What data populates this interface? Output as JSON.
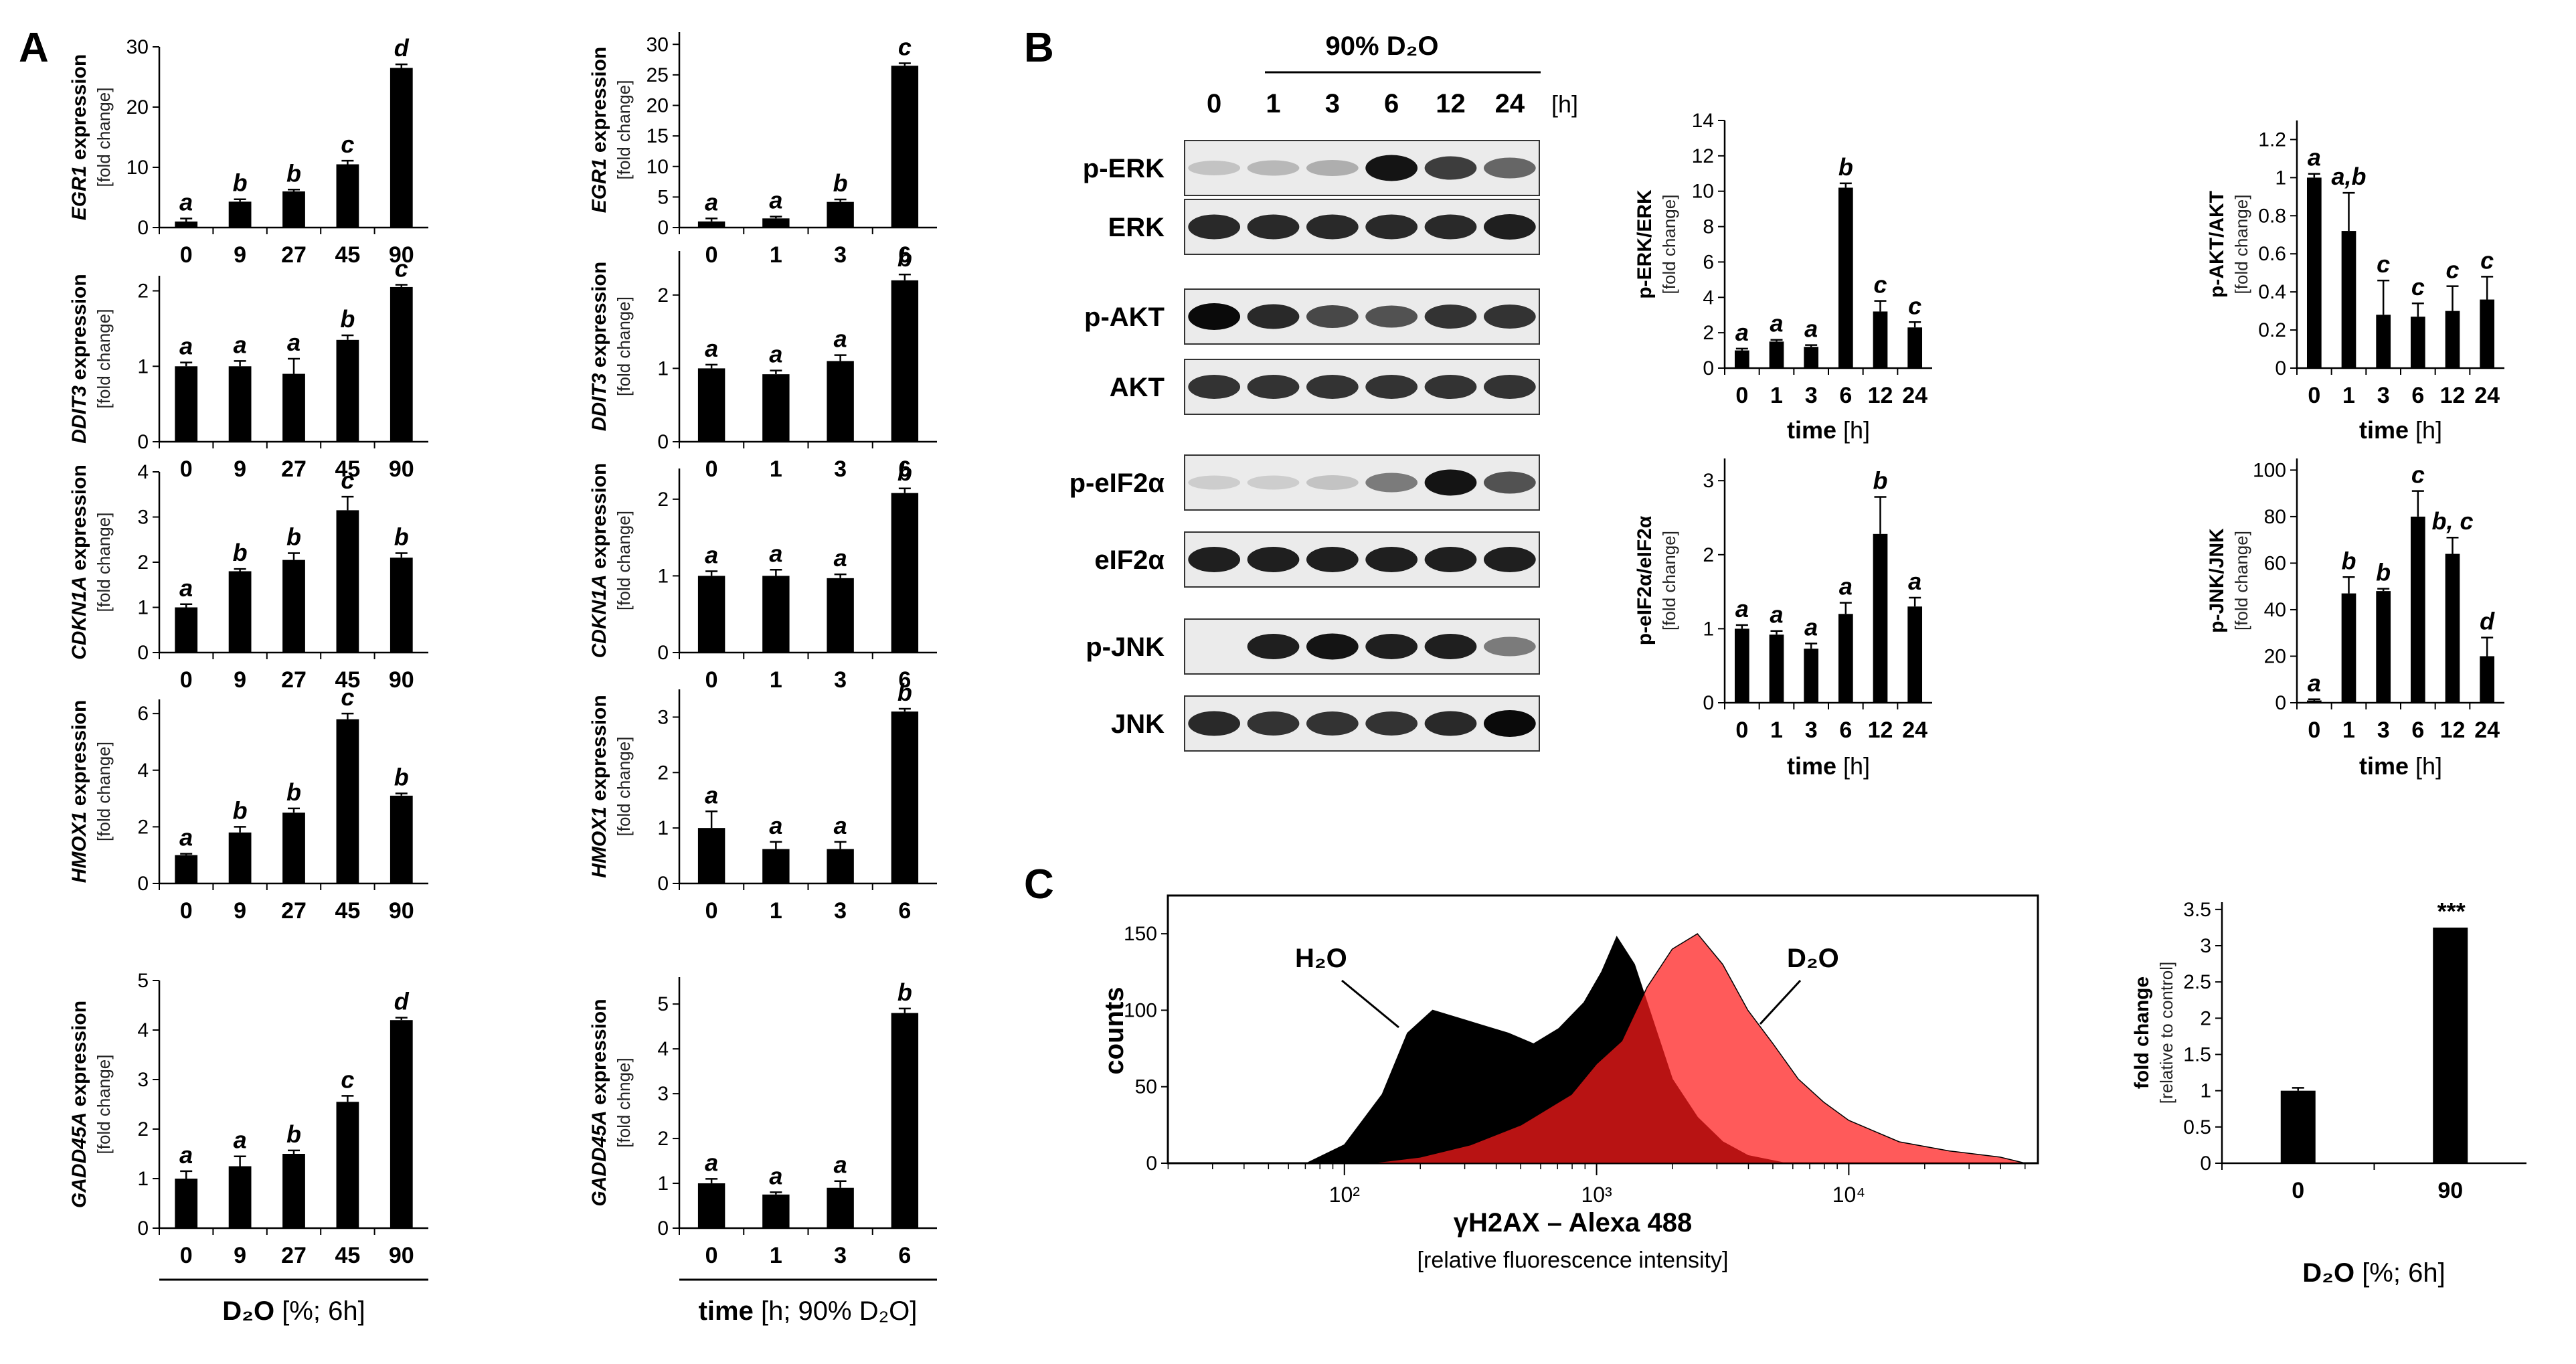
{
  "panels": {
    "a": "A",
    "b": "B",
    "c": "C"
  },
  "chart_data": [
    {
      "type": "bar",
      "name": "EGR1 dose",
      "gene": "EGR1",
      "ylabel_suffix": " expression",
      "ylabel2": "[fold change]",
      "categories": [
        "0",
        "9",
        "27",
        "45",
        "90"
      ],
      "values": [
        1,
        4.3,
        6,
        10.5,
        26.5
      ],
      "errors": [
        0.5,
        0.4,
        0.3,
        0.6,
        0.6
      ],
      "letters": [
        "a",
        "b",
        "b",
        "c",
        "d"
      ],
      "ylim": [
        0,
        30
      ],
      "yticks": [
        "0",
        "10",
        "20",
        "30"
      ]
    },
    {
      "type": "bar",
      "name": "DDIT3 dose",
      "gene": "DDIT3",
      "ylabel_suffix": " expression",
      "ylabel2": "[fold change]",
      "categories": [
        "0",
        "9",
        "27",
        "45",
        "90"
      ],
      "values": [
        1,
        1,
        0.9,
        1.35,
        2.05
      ],
      "errors": [
        0.05,
        0.07,
        0.2,
        0.06,
        0.03
      ],
      "letters": [
        "a",
        "a",
        "a",
        "b",
        "c"
      ],
      "ylim": [
        0,
        2.2
      ],
      "yticks": [
        "0",
        "1",
        "2"
      ]
    },
    {
      "type": "bar",
      "name": "CDKN1A dose",
      "gene": "CDKN1A",
      "ylabel_suffix": " expression",
      "ylabel2": "[fold change]",
      "categories": [
        "0",
        "9",
        "27",
        "45",
        "90"
      ],
      "values": [
        1,
        1.8,
        2.05,
        3.15,
        2.1
      ],
      "errors": [
        0.07,
        0.05,
        0.15,
        0.3,
        0.1
      ],
      "letters": [
        "a",
        "b",
        "b",
        "c",
        "b"
      ],
      "ylim": [
        0,
        4
      ],
      "yticks": [
        "0",
        "1",
        "2",
        "3",
        "4"
      ]
    },
    {
      "type": "bar",
      "name": "HMOX1 dose",
      "gene": "HMOX1",
      "ylabel_suffix": " expression",
      "ylabel2": "[fold change]",
      "categories": [
        "0",
        "9",
        "27",
        "45",
        "90"
      ],
      "values": [
        1,
        1.8,
        2.5,
        5.8,
        3.1
      ],
      "errors": [
        0.05,
        0.2,
        0.15,
        0.2,
        0.08
      ],
      "letters": [
        "a",
        "b",
        "b",
        "c",
        "b"
      ],
      "ylim": [
        0,
        6.5
      ],
      "yticks": [
        "0",
        "2",
        "4",
        "6"
      ]
    },
    {
      "type": "bar",
      "name": "GADD45A dose",
      "gene": "GADD45A",
      "ylabel_suffix": " expression",
      "ylabel2": "[fold change]",
      "categories": [
        "0",
        "9",
        "27",
        "45",
        "90"
      ],
      "values": [
        1,
        1.25,
        1.5,
        2.55,
        4.2
      ],
      "errors": [
        0.15,
        0.2,
        0.07,
        0.12,
        0.05
      ],
      "letters": [
        "a",
        "a",
        "b",
        "c",
        "d"
      ],
      "ylim": [
        0,
        5
      ],
      "yticks": [
        "0",
        "1",
        "2",
        "3",
        "4",
        "5"
      ]
    },
    {
      "type": "bar",
      "name": "EGR1 time",
      "gene": "EGR1",
      "ylabel_suffix": " expression",
      "ylabel2": "[fold change]",
      "categories": [
        "0",
        "1",
        "3",
        "6"
      ],
      "values": [
        1,
        1.5,
        4.2,
        26.5
      ],
      "errors": [
        0.5,
        0.3,
        0.4,
        0.4
      ],
      "letters": [
        "a",
        "a",
        "b",
        "c"
      ],
      "ylim": [
        0,
        32
      ],
      "yticks": [
        "0",
        "5",
        "10",
        "15",
        "20",
        "25",
        "30"
      ]
    },
    {
      "type": "bar",
      "name": "DDIT3 time",
      "gene": "DDIT3",
      "ylabel_suffix": " expression",
      "ylabel2": "[fold change]",
      "categories": [
        "0",
        "1",
        "3",
        "6"
      ],
      "values": [
        1,
        0.92,
        1.1,
        2.2
      ],
      "errors": [
        0.05,
        0.05,
        0.08,
        0.08
      ],
      "letters": [
        "a",
        "a",
        "a",
        "b"
      ],
      "ylim": [
        0,
        2.6
      ],
      "yticks": [
        "0",
        "1",
        "2"
      ]
    },
    {
      "type": "bar",
      "name": "CDKN1A time",
      "gene": "CDKN1A",
      "ylabel_suffix": " expression",
      "ylabel2": "[fold change]",
      "categories": [
        "0",
        "1",
        "3",
        "6"
      ],
      "values": [
        1,
        1,
        0.97,
        2.08
      ],
      "errors": [
        0.06,
        0.08,
        0.05,
        0.06
      ],
      "letters": [
        "a",
        "a",
        "a",
        "b"
      ],
      "ylim": [
        0,
        2.4
      ],
      "yticks": [
        "0",
        "1",
        "2"
      ]
    },
    {
      "type": "bar",
      "name": "HMOX1 time",
      "gene": "HMOX1",
      "ylabel_suffix": " expression",
      "ylabel2": "[fold change]",
      "categories": [
        "0",
        "1",
        "3",
        "6"
      ],
      "values": [
        1,
        0.62,
        0.62,
        3.1
      ],
      "errors": [
        0.3,
        0.13,
        0.13,
        0.05
      ],
      "letters": [
        "a",
        "a",
        "a",
        "b"
      ],
      "ylim": [
        0,
        3.5
      ],
      "yticks": [
        "0",
        "1",
        "2",
        "3"
      ]
    },
    {
      "type": "bar",
      "name": "GADD45A time",
      "gene": "GADD45A",
      "ylabel_suffix": " expression",
      "ylabel2": "[fold chnge]",
      "categories": [
        "0",
        "1",
        "3",
        "6"
      ],
      "values": [
        1,
        0.75,
        0.9,
        4.8
      ],
      "errors": [
        0.1,
        0.05,
        0.15,
        0.1
      ],
      "letters": [
        "a",
        "a",
        "a",
        "b"
      ],
      "ylim": [
        0,
        5.6
      ],
      "yticks": [
        "0",
        "1",
        "2",
        "3",
        "4",
        "5"
      ]
    },
    {
      "type": "bar",
      "name": "p-ERK/ERK",
      "ylabel": "p-ERK/ERK",
      "ylabel2": "[fold change]",
      "categories": [
        "0",
        "1",
        "3",
        "6",
        "12",
        "24"
      ],
      "values": [
        1,
        1.5,
        1.2,
        10.2,
        3.2,
        2.3
      ],
      "errors": [
        0.1,
        0.1,
        0.1,
        0.25,
        0.6,
        0.3
      ],
      "letters": [
        "a",
        "a",
        "a",
        "b",
        "c",
        "c"
      ],
      "ylim": [
        0,
        14
      ],
      "yticks": [
        "0",
        "2",
        "4",
        "6",
        "8",
        "10",
        "12",
        "14"
      ]
    },
    {
      "type": "bar",
      "name": "p-AKT/AKT",
      "ylabel": "p-AKT/AKT",
      "ylabel2": "[fold change]",
      "categories": [
        "0",
        "1",
        "3",
        "6",
        "12",
        "24"
      ],
      "values": [
        1,
        0.72,
        0.28,
        0.27,
        0.3,
        0.36
      ],
      "errors": [
        0.02,
        0.2,
        0.18,
        0.07,
        0.13,
        0.12
      ],
      "letters": [
        "a",
        "a,b",
        "c",
        "c",
        "c",
        "c"
      ],
      "ylim": [
        0,
        1.3
      ],
      "yticks": [
        "0",
        "0.2",
        "0.4",
        "0.6",
        "0.8",
        "1",
        "1.2"
      ]
    },
    {
      "type": "bar",
      "name": "p-eIF2a/eIF2a",
      "ylabel": "p-eIF2α/eIF2α",
      "ylabel2": "[fold change]",
      "categories": [
        "0",
        "1",
        "3",
        "6",
        "12",
        "24"
      ],
      "values": [
        1,
        0.92,
        0.73,
        1.2,
        2.28,
        1.3
      ],
      "errors": [
        0.05,
        0.05,
        0.07,
        0.15,
        0.5,
        0.12
      ],
      "letters": [
        "a",
        "a",
        "a",
        "a",
        "b",
        "a"
      ],
      "ylim": [
        0,
        3.3
      ],
      "yticks": [
        "0",
        "1",
        "2",
        "3"
      ]
    },
    {
      "type": "bar",
      "name": "p-JNK/JNK",
      "ylabel": "p-JNK/JNK",
      "ylabel2": "[fold change]",
      "categories": [
        "0",
        "1",
        "3",
        "6",
        "12",
        "24"
      ],
      "values": [
        1,
        47,
        48,
        80,
        64,
        20
      ],
      "errors": [
        0.5,
        7,
        1,
        11,
        7,
        8
      ],
      "letters": [
        "a",
        "b",
        "b",
        "c",
        "b, c",
        "d"
      ],
      "ylim": [
        0,
        105
      ],
      "yticks": [
        "0",
        "20",
        "40",
        "60",
        "80",
        "100"
      ]
    },
    {
      "type": "area",
      "name": "gammaH2AX histogram",
      "xlabel": "γH2AX – Alexa 488",
      "xlabel2": "[relative fluorescence intensity]",
      "ylabel": "counts",
      "xticks": [
        "10²",
        "10³",
        "10⁴"
      ],
      "yticks": [
        "0",
        "50",
        "100",
        "150"
      ],
      "ylim": [
        0,
        175
      ],
      "xlim_log10": [
        1.3,
        4.75
      ],
      "legend": [
        "H₂O",
        "D₂O"
      ],
      "series": [
        {
          "name": "H₂O",
          "color": "#000000",
          "x_log10": [
            1.85,
            2.0,
            2.15,
            2.25,
            2.35,
            2.45,
            2.55,
            2.65,
            2.75,
            2.85,
            2.95,
            3.02,
            3.08,
            3.15,
            3.22,
            3.3,
            3.4,
            3.5,
            3.6,
            3.75
          ],
          "counts": [
            0,
            12,
            45,
            85,
            100,
            95,
            90,
            85,
            78,
            88,
            105,
            125,
            148,
            130,
            95,
            55,
            30,
            14,
            5,
            0
          ]
        },
        {
          "name": "D₂O",
          "color": "#ff1a1a",
          "x_log10": [
            2.1,
            2.3,
            2.5,
            2.7,
            2.9,
            3.0,
            3.1,
            3.2,
            3.3,
            3.4,
            3.5,
            3.6,
            3.7,
            3.8,
            3.9,
            4.0,
            4.2,
            4.4,
            4.6,
            4.7
          ],
          "counts": [
            0,
            4,
            12,
            25,
            45,
            65,
            80,
            115,
            140,
            150,
            130,
            100,
            78,
            55,
            40,
            28,
            14,
            8,
            4,
            0
          ]
        }
      ]
    },
    {
      "type": "bar",
      "name": "gammaH2AX fold change",
      "ylabel": "fold change",
      "ylabel2": "[relative to control]",
      "categories": [
        "0",
        "90"
      ],
      "values": [
        1,
        3.25
      ],
      "errors": [
        0.04,
        0.0
      ],
      "letters": [
        "",
        "***"
      ],
      "ylim": [
        0,
        3.6
      ],
      "yticks": [
        "0",
        "0.5",
        "1",
        "1.5",
        "2",
        "2.5",
        "3",
        "3.5"
      ],
      "xlabel_main": "D₂O",
      "xlabel_rest": " [%; 6h]"
    }
  ],
  "axis_a_dose": {
    "main": "D₂O",
    "rest": " [%; 6h]"
  },
  "axis_a_time": {
    "main": "time",
    "rest": " [h; 90% D₂O]"
  },
  "axis_b_time": {
    "main": "time",
    "rest": " [h]"
  },
  "blot": {
    "treatment": "90% D₂O",
    "lanes": [
      "0",
      "1",
      "3",
      "6",
      "12",
      "24"
    ],
    "unit": "[h]",
    "rows": [
      {
        "label": "p-ERK",
        "intensity": [
          0.1,
          0.15,
          0.2,
          0.95,
          0.75,
          0.55
        ]
      },
      {
        "label": "ERK",
        "intensity": [
          0.85,
          0.85,
          0.85,
          0.85,
          0.85,
          0.9
        ]
      },
      {
        "label": "p-AKT",
        "intensity": [
          1.0,
          0.85,
          0.7,
          0.65,
          0.8,
          0.8
        ]
      },
      {
        "label": "AKT",
        "intensity": [
          0.8,
          0.8,
          0.8,
          0.8,
          0.8,
          0.8
        ]
      },
      {
        "label": "p-eIF2α",
        "intensity": [
          0.05,
          0.05,
          0.1,
          0.45,
          0.95,
          0.65
        ]
      },
      {
        "label": "eIF2α",
        "intensity": [
          0.9,
          0.9,
          0.9,
          0.9,
          0.9,
          0.9
        ]
      },
      {
        "label": "p-JNK",
        "intensity": [
          0.0,
          0.9,
          0.95,
          0.9,
          0.9,
          0.45
        ]
      },
      {
        "label": "JNK",
        "intensity": [
          0.85,
          0.8,
          0.8,
          0.8,
          0.85,
          1.0
        ]
      }
    ]
  }
}
